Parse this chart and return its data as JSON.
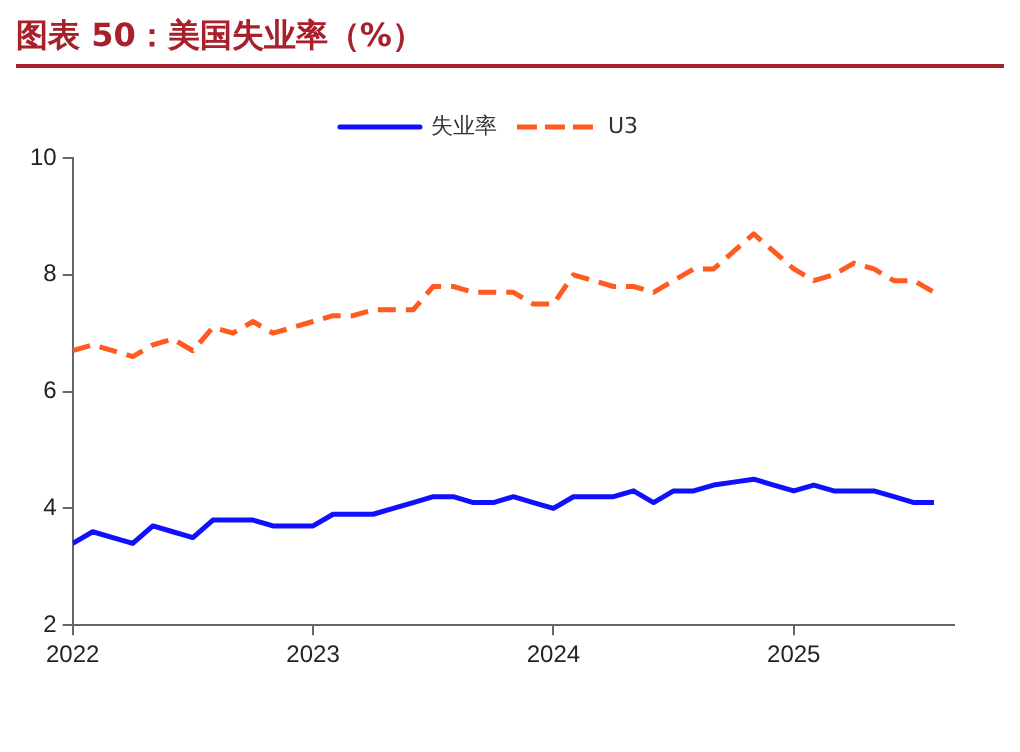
{
  "chart_data": {
    "type": "line",
    "title": "图表 50：美国失业率（%）",
    "x": [
      "2022-01",
      "2022-02",
      "2022-03",
      "2022-04",
      "2022-05",
      "2022-06",
      "2022-07",
      "2022-08",
      "2022-09",
      "2022-10",
      "2022-11",
      "2022-12",
      "2023-01",
      "2023-02",
      "2023-03",
      "2023-04",
      "2023-05",
      "2023-06",
      "2023-07",
      "2023-08",
      "2023-09",
      "2023-10",
      "2023-11",
      "2023-12",
      "2024-01",
      "2024-02",
      "2024-03",
      "2024-04",
      "2024-05",
      "2024-06",
      "2024-07",
      "2024-08",
      "2024-09",
      "2024-10",
      "2024-11",
      "2024-12",
      "2025-01",
      "2025-02",
      "2025-03",
      "2025-04",
      "2025-05",
      "2025-06",
      "2025-07",
      "2025-08"
    ],
    "series": [
      {
        "name": "失业率",
        "color": "#1010ff",
        "line_style": "solid",
        "values": [
          3.4,
          3.6,
          3.5,
          3.4,
          3.7,
          3.6,
          3.5,
          3.8,
          3.8,
          3.8,
          3.7,
          3.7,
          3.7,
          3.9,
          3.9,
          3.9,
          4.0,
          4.1,
          4.2,
          4.2,
          4.1,
          4.1,
          4.2,
          4.1,
          4.0,
          4.2,
          4.2,
          4.2,
          4.3,
          4.1,
          4.3,
          4.3,
          4.4,
          4.45,
          4.5,
          4.4,
          4.3,
          4.4,
          4.3,
          4.3,
          4.3,
          4.2,
          4.1,
          4.1
        ]
      },
      {
        "name": "U3",
        "color": "#ff5a1f",
        "line_style": "dashed",
        "values": [
          6.7,
          6.8,
          6.7,
          6.6,
          6.8,
          6.9,
          6.7,
          7.1,
          7.0,
          7.2,
          7.0,
          7.1,
          7.2,
          7.3,
          7.3,
          7.4,
          7.4,
          7.4,
          7.8,
          7.8,
          7.7,
          7.7,
          7.7,
          7.5,
          7.5,
          8.0,
          7.9,
          7.8,
          7.8,
          7.7,
          7.9,
          8.1,
          8.1,
          8.4,
          8.7,
          8.4,
          8.1,
          7.9,
          8.0,
          8.2,
          8.1,
          7.9,
          7.9,
          7.7
        ]
      }
    ],
    "xlim": [
      "2022-01",
      "2025-09"
    ],
    "xticks": [
      {
        "value": "2022-01",
        "label": "2022"
      },
      {
        "value": "2023-01",
        "label": "2023"
      },
      {
        "value": "2024-01",
        "label": "2024"
      },
      {
        "value": "2025-01",
        "label": "2025"
      }
    ],
    "ylim": [
      2,
      10
    ],
    "yticks": [
      2,
      4,
      6,
      8,
      10
    ],
    "grid": false,
    "legend": "top",
    "marker": "none"
  }
}
